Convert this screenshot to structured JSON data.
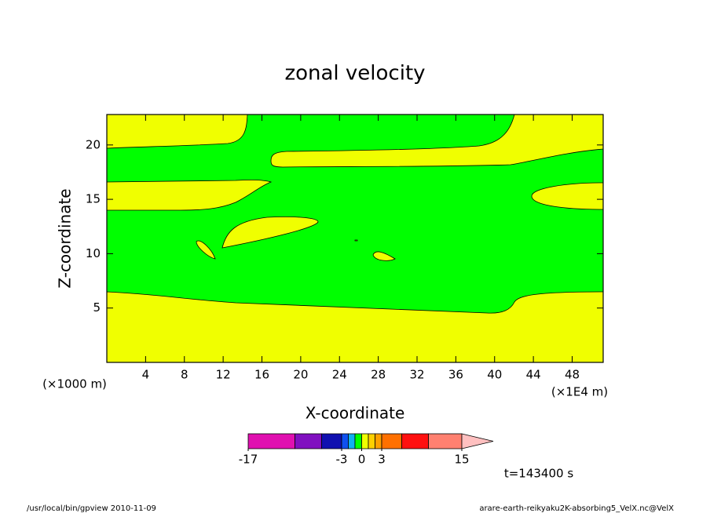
{
  "chart_data": {
    "type": "contour",
    "title": "zonal velocity",
    "x_label": "X-coordinate",
    "y_label": "Z-coordinate",
    "x_unit_left": "(×1000 m)",
    "x_unit_right": "(×1E4 m)",
    "xlim": [
      0,
      51.2
    ],
    "xticks": [
      4,
      8,
      12,
      16,
      20,
      24,
      28,
      32,
      36,
      40,
      44,
      48
    ],
    "ylim": [
      0,
      22.8
    ],
    "yticks": [
      5,
      10,
      15,
      20
    ],
    "colorbar": {
      "levels": [
        -17,
        -10,
        -6,
        -3,
        -2,
        -1,
        0,
        1,
        2,
        3,
        6,
        10,
        15
      ],
      "colors": [
        "#e010b0",
        "#8010c0",
        "#1010b0",
        "#1050f0",
        "#10b0f0",
        "#00ff00",
        "#f0ff00",
        "#ffd000",
        "#ffa000",
        "#ff7000",
        "#ff1010",
        "#ff8070"
      ],
      "over_color": "#ffc0c0",
      "ticks": [
        -17,
        -3,
        0,
        3,
        15
      ]
    },
    "time_label": "t=143400 s"
  },
  "footer": {
    "left": "/usr/local/bin/gpview   2010-11-09",
    "right": "arare-earth-reikyaku2K-absorbing5_VelX.nc@VelX"
  }
}
